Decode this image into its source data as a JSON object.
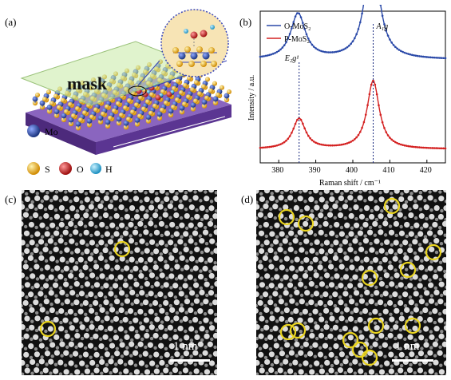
{
  "panels": {
    "a": {
      "label": "(a)",
      "mask_text": "mask",
      "legend": {
        "mo": "Mo",
        "s": "S",
        "o": "O",
        "h": "H"
      },
      "colors": {
        "mo": "#1e3f9a",
        "s": "#e0a316",
        "o": "#c21d1d",
        "h": "#2aa7d8",
        "substrate": "#6b3fa0",
        "mask": "#bfe3a0"
      }
    },
    "b": {
      "label": "(b)"
    },
    "c": {
      "label": "(c)",
      "scale_bar": "1 nm"
    },
    "d": {
      "label": "(d)",
      "scale_bar": "1 nm"
    }
  },
  "chart_data": {
    "type": "line",
    "xlabel": "Raman shift / cm⁻¹",
    "ylabel": "Intensity / a.u.",
    "xlim": [
      375,
      425
    ],
    "xticks": [
      380,
      390,
      400,
      410,
      420
    ],
    "grid": false,
    "legend_position": "top-left",
    "series": [
      {
        "name": "O-MoS₂",
        "color": "#2a49a8",
        "offset": 0.62,
        "peaks": [
          {
            "center": 385.2,
            "height": 0.3,
            "width": 2.4
          },
          {
            "center": 405.2,
            "height": 0.75,
            "width": 2.2
          }
        ],
        "baseline": 0.06
      },
      {
        "name": "P-MoS₂",
        "color": "#d42020",
        "offset": 0.05,
        "peaks": [
          {
            "center": 385.5,
            "height": 0.2,
            "width": 2.1
          },
          {
            "center": 405.5,
            "height": 0.45,
            "width": 2.0
          }
        ],
        "baseline": 0.04
      }
    ],
    "annotations": [
      {
        "text": "E₂g¹",
        "x": 385.5
      },
      {
        "text": "A₁g",
        "x": 405.5
      }
    ]
  },
  "micro_c": {
    "circles": 2
  },
  "micro_d": {
    "circles": 16
  }
}
